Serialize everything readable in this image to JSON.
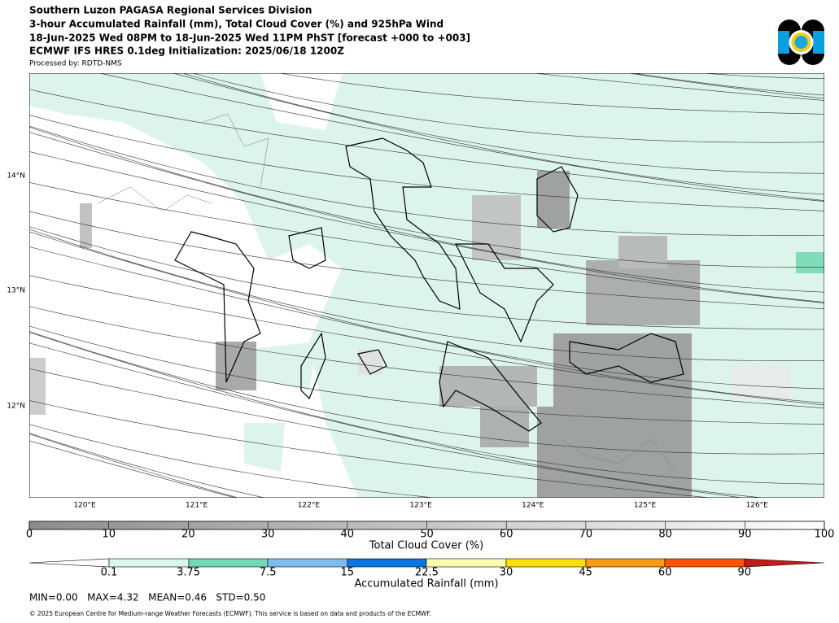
{
  "header": {
    "lines": [
      "Southern Luzon PAGASA Regional Services Division",
      "3-hour Accumulated Rainfall (mm), Total Cloud Cover (%) and 925hPa Wind",
      "18-Jun-2025 Wed 08PM to 18-Jun-2025 Wed 11PM PhST [forecast +000 to +003]",
      "ECMWF IFS HRES 0.1deg Initialization: 2025/06/18 1200Z"
    ],
    "processed_by": "Processed by: RDTD-NMS"
  },
  "map": {
    "lat_labels": [
      "14°N",
      "13°N",
      "12°N"
    ],
    "lon_labels": [
      "120°E",
      "121°E",
      "122°E",
      "123°E",
      "124°E",
      "125°E",
      "126°E"
    ]
  },
  "cloud_bar": {
    "ticks": [
      "0",
      "10",
      "20",
      "30",
      "40",
      "50",
      "60",
      "70",
      "80",
      "90",
      "100"
    ],
    "label": "Total Cloud Cover (%)"
  },
  "rain_bar": {
    "ticks": [
      "0.1",
      "3.75",
      "7.5",
      "15",
      "22.5",
      "30",
      "45",
      "60",
      "90"
    ],
    "label": "Accumulated Rainfall (mm)"
  },
  "stats": "MIN=0.00   MAX=4.32   MEAN=0.46   STD=0.50",
  "footer": "© 2025 European Centre for Medium-range Weather Forecasts (ECMWF). This service is based on data and products of the ECMWF."
}
